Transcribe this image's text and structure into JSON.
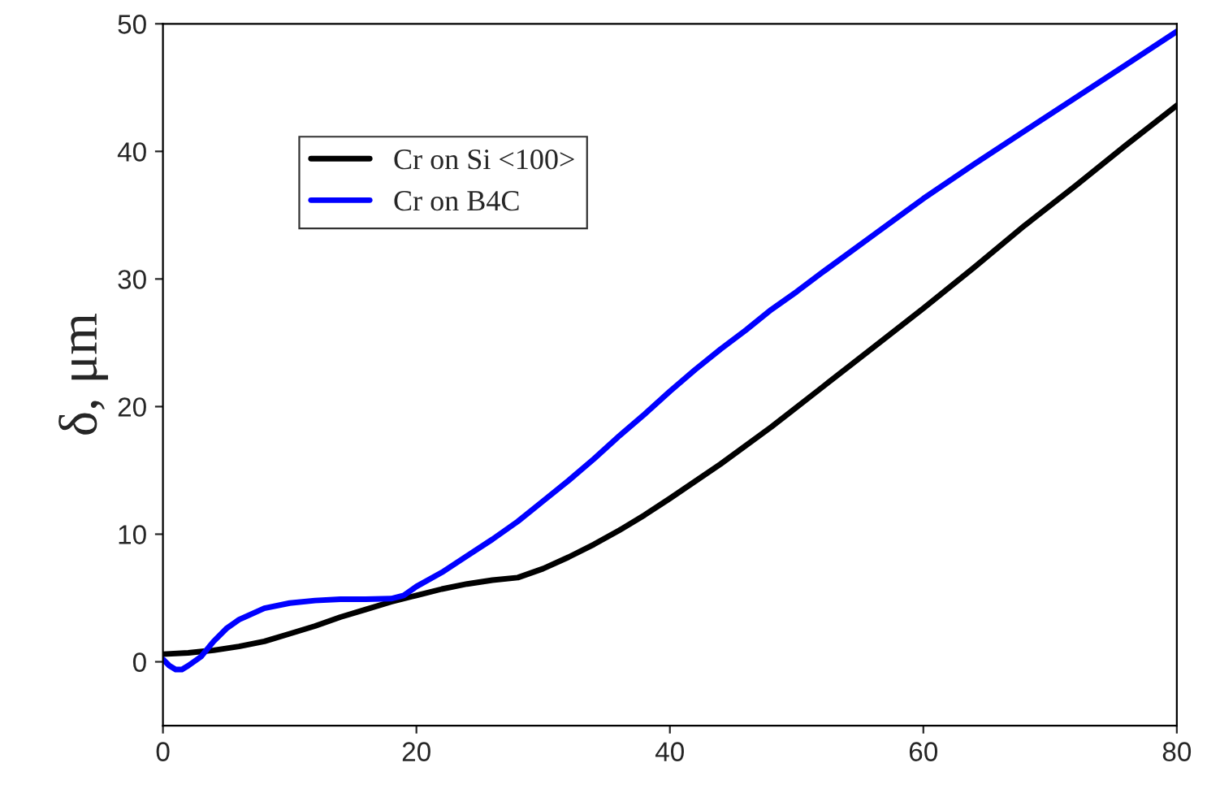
{
  "chart_data": {
    "type": "line",
    "ylabel": "δ, μm",
    "xlim": [
      0,
      80
    ],
    "ylim": [
      -5,
      50
    ],
    "xticks": [
      0,
      20,
      40,
      60,
      80
    ],
    "yticks": [
      0,
      10,
      20,
      30,
      40,
      50
    ],
    "grid": false,
    "legend": "top left",
    "marker": "none",
    "line_style": "solid",
    "series": [
      {
        "name": "Cr on Si <100>",
        "color": "#000000",
        "x": [
          0,
          2,
          4,
          6,
          8,
          10,
          12,
          14,
          16,
          18,
          20,
          22,
          24,
          26,
          28,
          30,
          32,
          34,
          36,
          38,
          40,
          44,
          48,
          52,
          56,
          60,
          64,
          68,
          72,
          76,
          80
        ],
        "values": [
          0.6,
          0.7,
          0.9,
          1.2,
          1.6,
          2.2,
          2.8,
          3.5,
          4.1,
          4.7,
          5.2,
          5.7,
          6.1,
          6.4,
          6.6,
          7.3,
          8.2,
          9.2,
          10.3,
          11.5,
          12.8,
          15.5,
          18.4,
          21.5,
          24.6,
          27.7,
          30.9,
          34.2,
          37.3,
          40.5,
          43.6
        ]
      },
      {
        "name": "Cr on B4C",
        "color": "#0000ff",
        "x": [
          0,
          0.5,
          1,
          1.5,
          2,
          3,
          4,
          5,
          6,
          8,
          10,
          12,
          14,
          16,
          18,
          19,
          20,
          22,
          24,
          26,
          28,
          30,
          32,
          34,
          36,
          38,
          40,
          42,
          44,
          46,
          48,
          50,
          52,
          56,
          60,
          64,
          68,
          72,
          76,
          80
        ],
        "values": [
          0.2,
          -0.3,
          -0.6,
          -0.6,
          -0.3,
          0.4,
          1.6,
          2.6,
          3.3,
          4.2,
          4.6,
          4.8,
          4.9,
          4.9,
          4.95,
          5.2,
          5.9,
          7.0,
          8.3,
          9.6,
          11.0,
          12.6,
          14.2,
          15.9,
          17.7,
          19.4,
          21.2,
          22.9,
          24.5,
          26.0,
          27.6,
          29.0,
          30.5,
          33.4,
          36.3,
          39.0,
          41.6,
          44.2,
          46.8,
          49.4
        ]
      }
    ]
  }
}
